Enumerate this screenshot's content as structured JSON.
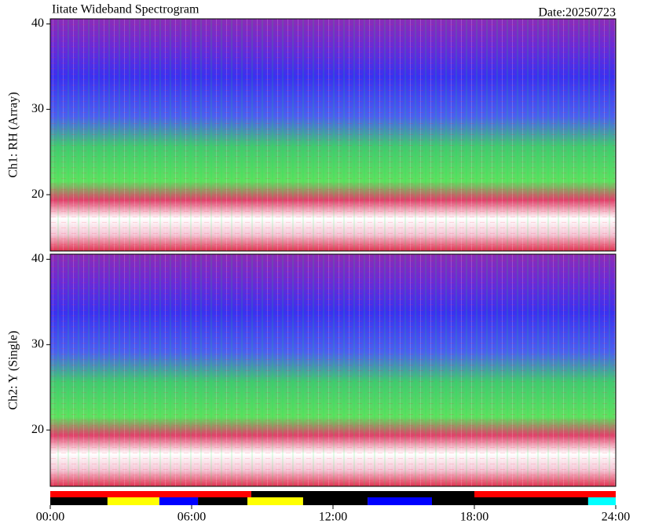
{
  "chart_data": [
    {
      "type": "spectrogram",
      "title": "Iitate Wideband Spectrogram",
      "date": "Date:20250723",
      "ylabel": "Ch1: RH (Array)",
      "ylim": [
        13.4,
        40.6
      ],
      "yticks": [
        20,
        30,
        40
      ]
    },
    {
      "type": "spectrogram",
      "ylabel": "Ch2: Y (Single)",
      "ylim": [
        13.4,
        40.6
      ],
      "yticks": [
        20,
        30,
        40
      ]
    },
    {
      "type": "timeline",
      "xlim": [
        0,
        24
      ],
      "xticks": [
        {
          "value": 0,
          "label": "00:00"
        },
        {
          "value": 6,
          "label": "06:00"
        },
        {
          "value": 12,
          "label": "12:00"
        },
        {
          "value": 18,
          "label": "18:00"
        },
        {
          "value": 24,
          "label": "24:00"
        }
      ],
      "rows": [
        {
          "segments": [
            {
              "start": 0,
              "end": 8.53,
              "color": "#ff0000"
            },
            {
              "start": 8.53,
              "end": 18,
              "color": "#000000"
            },
            {
              "start": 18,
              "end": 24,
              "color": "#ff0000"
            }
          ]
        },
        {
          "segments": [
            {
              "start": 0,
              "end": 2.43,
              "color": "#000000"
            },
            {
              "start": 2.43,
              "end": 4.63,
              "color": "#ffff00"
            },
            {
              "start": 4.63,
              "end": 6.27,
              "color": "#0000ff"
            },
            {
              "start": 6.27,
              "end": 8.37,
              "color": "#000000"
            },
            {
              "start": 8.37,
              "end": 10.73,
              "color": "#ffff00"
            },
            {
              "start": 10.73,
              "end": 13.47,
              "color": "#000000"
            },
            {
              "start": 13.47,
              "end": 16.2,
              "color": "#0000ff"
            },
            {
              "start": 16.2,
              "end": 22.83,
              "color": "#000000"
            },
            {
              "start": 22.83,
              "end": 24,
              "color": "#00ffff"
            }
          ]
        }
      ]
    }
  ]
}
